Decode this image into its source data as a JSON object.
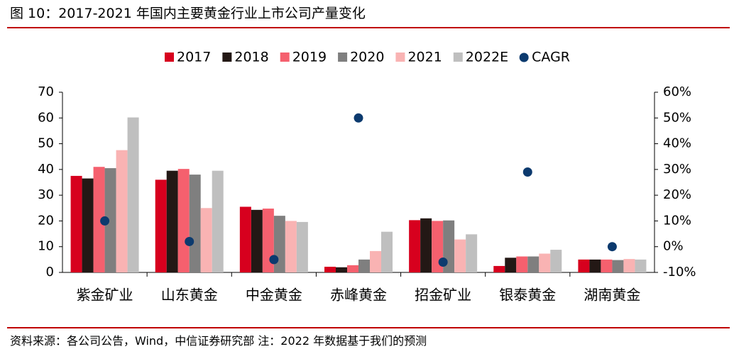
{
  "figure_title": "图 10：2017-2021 年国内主要黄金行业上市公司产量变化",
  "source_note": "资料来源：各公司公告，Wind，中信证券研究部   注：2022 年数据基于我们的预测",
  "chart_data": {
    "type": "bar",
    "categories": [
      "紫金矿业",
      "山东黄金",
      "中金黄金",
      "赤峰黄金",
      "招金矿业",
      "银泰黄金",
      "湖南黄金"
    ],
    "series": [
      {
        "name": "2017",
        "color": "#d7001e",
        "values": [
          37.5,
          36.0,
          25.5,
          2.2,
          20.3,
          2.5,
          5.0
        ]
      },
      {
        "name": "2018",
        "color": "#231815",
        "values": [
          36.5,
          39.5,
          24.3,
          2.0,
          21.0,
          5.7,
          5.0
        ]
      },
      {
        "name": "2019",
        "color": "#f5606e",
        "values": [
          41.0,
          40.2,
          24.8,
          2.8,
          20.0,
          6.2,
          5.0
        ]
      },
      {
        "name": "2020",
        "color": "#7f7f7f",
        "values": [
          40.5,
          38.0,
          22.0,
          5.0,
          20.2,
          6.2,
          4.8
        ]
      },
      {
        "name": "2021",
        "color": "#f9b3b3",
        "values": [
          47.5,
          25.0,
          20.0,
          8.3,
          12.8,
          7.3,
          5.2
        ]
      },
      {
        "name": "2022E",
        "color": "#bfbfbf",
        "values": [
          60.2,
          39.5,
          19.6,
          15.8,
          14.8,
          8.8,
          5.0
        ]
      }
    ],
    "cagr": {
      "name": "CAGR",
      "color": "#0c3a6e",
      "values": [
        0.1,
        0.02,
        -0.05,
        0.5,
        -0.06,
        0.29,
        0.0
      ]
    },
    "y_left": {
      "min": 0,
      "max": 70,
      "ticks": [
        "0",
        "10",
        "20",
        "30",
        "40",
        "50",
        "60",
        "70"
      ]
    },
    "y_right": {
      "min": -0.1,
      "max": 0.6,
      "ticks": [
        "-10%",
        "0%",
        "10%",
        "20%",
        "30%",
        "40%",
        "50%",
        "60%"
      ]
    },
    "legend_position": "top",
    "grid": false
  }
}
